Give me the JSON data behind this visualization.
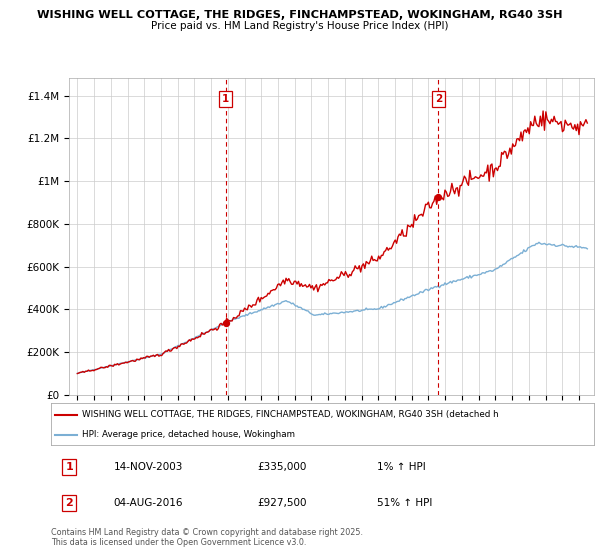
{
  "title": "WISHING WELL COTTAGE, THE RIDGES, FINCHAMPSTEAD, WOKINGHAM, RG40 3SH",
  "subtitle": "Price paid vs. HM Land Registry's House Price Index (HPI)",
  "ylabel_ticks": [
    "£0",
    "£200K",
    "£400K",
    "£600K",
    "£800K",
    "£1M",
    "£1.2M",
    "£1.4M"
  ],
  "ylabel_values": [
    0,
    200000,
    400000,
    600000,
    800000,
    1000000,
    1200000,
    1400000
  ],
  "ylim": [
    0,
    1480000
  ],
  "xlim_left": 1994.5,
  "xlim_right": 2025.9,
  "sale1_date": 2003.87,
  "sale1_price": 335000,
  "sale1_label": "1",
  "sale2_date": 2016.59,
  "sale2_price": 927500,
  "sale2_label": "2",
  "red_line_color": "#cc0000",
  "blue_line_color": "#7bafd4",
  "dashed_line_color": "#cc0000",
  "legend_line1": "WISHING WELL COTTAGE, THE RIDGES, FINCHAMPSTEAD, WOKINGHAM, RG40 3SH (detached h",
  "legend_line2": "HPI: Average price, detached house, Wokingham",
  "table_row1": [
    "1",
    "14-NOV-2003",
    "£335,000",
    "1% ↑ HPI"
  ],
  "table_row2": [
    "2",
    "04-AUG-2016",
    "£927,500",
    "51% ↑ HPI"
  ],
  "footer": "Contains HM Land Registry data © Crown copyright and database right 2025.\nThis data is licensed under the Open Government Licence v3.0.",
  "background_color": "#ffffff",
  "grid_color": "#cccccc"
}
